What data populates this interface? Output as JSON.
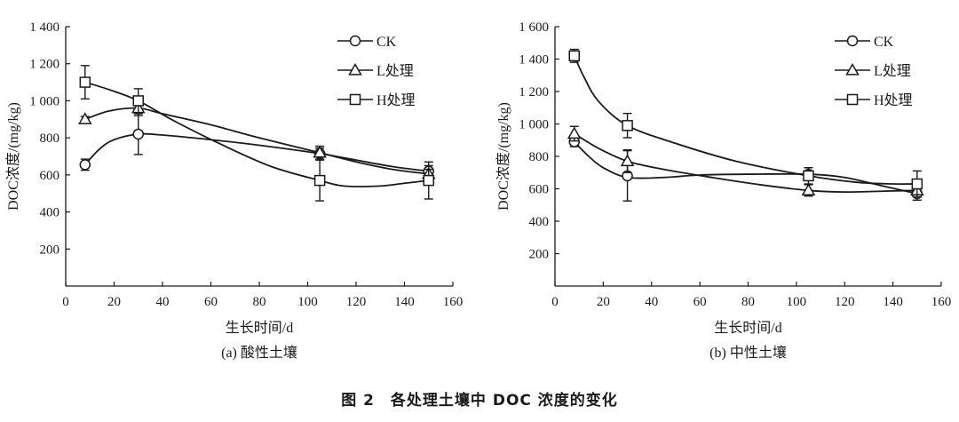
{
  "figure_caption": "图 2　各处理土壤中 DOC 浓度的变化",
  "chart_data": [
    {
      "type": "line",
      "caption": "(a) 酸性土壤",
      "xlabel": "生长时间/d",
      "ylabel": "DOC浓度/(mg/kg)",
      "xlim": [
        0,
        160
      ],
      "ylim": [
        0,
        1400
      ],
      "xticks": [
        0,
        20,
        40,
        60,
        80,
        100,
        120,
        140,
        160
      ],
      "xtick_labels": [
        "0",
        "20",
        "40",
        "60",
        "80",
        "100",
        "120",
        "140",
        "160"
      ],
      "yticks": [
        200,
        400,
        600,
        800,
        1000,
        1200,
        1400
      ],
      "ytick_labels": [
        "200",
        "400",
        "600",
        "800",
        "1 000",
        "1 200",
        "1 400"
      ],
      "legend_position": "top-right",
      "series": [
        {
          "name": "CK",
          "marker": "circle",
          "x": [
            8,
            30,
            105,
            150
          ],
          "y": [
            655,
            820,
            715,
            620
          ],
          "err": [
            30,
            110,
            30,
            30
          ],
          "curve": [
            [
              8,
              655
            ],
            [
              14,
              740
            ],
            [
              20,
              790
            ],
            [
              30,
              820
            ],
            [
              40,
              815
            ],
            [
              60,
              790
            ],
            [
              80,
              760
            ],
            [
              105,
              715
            ],
            [
              120,
              680
            ],
            [
              135,
              645
            ],
            [
              150,
              620
            ]
          ]
        },
        {
          "name": "L处理",
          "marker": "triangle",
          "x": [
            8,
            30,
            105,
            150
          ],
          "y": [
            900,
            960,
            720,
            605
          ],
          "err": [
            15,
            40,
            35,
            25
          ],
          "curve": [
            [
              8,
              900
            ],
            [
              18,
              945
            ],
            [
              30,
              960
            ],
            [
              40,
              930
            ],
            [
              60,
              870
            ],
            [
              80,
              800
            ],
            [
              105,
              720
            ],
            [
              120,
              670
            ],
            [
              135,
              630
            ],
            [
              150,
              605
            ]
          ]
        },
        {
          "name": "H处理",
          "marker": "square",
          "x": [
            8,
            30,
            105,
            150
          ],
          "y": [
            1100,
            1000,
            570,
            570
          ],
          "err": [
            90,
            65,
            110,
            100
          ],
          "curve": [
            [
              8,
              1100
            ],
            [
              18,
              1060
            ],
            [
              30,
              1000
            ],
            [
              45,
              890
            ],
            [
              65,
              760
            ],
            [
              85,
              645
            ],
            [
              105,
              570
            ],
            [
              115,
              540
            ],
            [
              130,
              540
            ],
            [
              140,
              555
            ],
            [
              150,
              570
            ]
          ]
        }
      ]
    },
    {
      "type": "line",
      "caption": "(b) 中性土壤",
      "xlabel": "生长时间/d",
      "ylabel": "DOC浓度/(mg/kg)",
      "xlim": [
        0,
        160
      ],
      "ylim": [
        0,
        1600
      ],
      "xticks": [
        0,
        20,
        40,
        60,
        80,
        100,
        120,
        140,
        160
      ],
      "xtick_labels": [
        "0",
        "20",
        "40",
        "60",
        "80",
        "100",
        "120",
        "140",
        "160"
      ],
      "yticks": [
        200,
        400,
        600,
        800,
        1000,
        1200,
        1400,
        1600
      ],
      "ytick_labels": [
        "200",
        "400",
        "600",
        "800",
        "1 000",
        "1 200",
        "1 400",
        "1 600"
      ],
      "legend_position": "top-right",
      "series": [
        {
          "name": "CK",
          "marker": "circle",
          "x": [
            8,
            30,
            105,
            150
          ],
          "y": [
            890,
            680,
            690,
            570
          ],
          "err": [
            30,
            155,
            40,
            40
          ],
          "curve": [
            [
              8,
              890
            ],
            [
              14,
              800
            ],
            [
              20,
              730
            ],
            [
              30,
              670
            ],
            [
              45,
              670
            ],
            [
              60,
              685
            ],
            [
              80,
              690
            ],
            [
              105,
              690
            ],
            [
              120,
              670
            ],
            [
              135,
              620
            ],
            [
              150,
              570
            ]
          ]
        },
        {
          "name": "L处理",
          "marker": "triangle",
          "x": [
            8,
            30,
            105,
            150
          ],
          "y": [
            940,
            770,
            590,
            590
          ],
          "err": [
            45,
            70,
            35,
            40
          ],
          "curve": [
            [
              8,
              940
            ],
            [
              18,
              850
            ],
            [
              30,
              770
            ],
            [
              45,
              720
            ],
            [
              65,
              670
            ],
            [
              85,
              625
            ],
            [
              105,
              590
            ],
            [
              120,
              580
            ],
            [
              135,
              585
            ],
            [
              150,
              590
            ]
          ]
        },
        {
          "name": "H处理",
          "marker": "square",
          "x": [
            8,
            30,
            105,
            150
          ],
          "y": [
            1420,
            990,
            680,
            630
          ],
          "err": [
            40,
            75,
            50,
            80
          ],
          "curve": [
            [
              8,
              1420
            ],
            [
              12,
              1290
            ],
            [
              18,
              1140
            ],
            [
              30,
              990
            ],
            [
              50,
              880
            ],
            [
              75,
              770
            ],
            [
              105,
              680
            ],
            [
              125,
              640
            ],
            [
              140,
              630
            ],
            [
              150,
              630
            ]
          ]
        }
      ]
    }
  ]
}
